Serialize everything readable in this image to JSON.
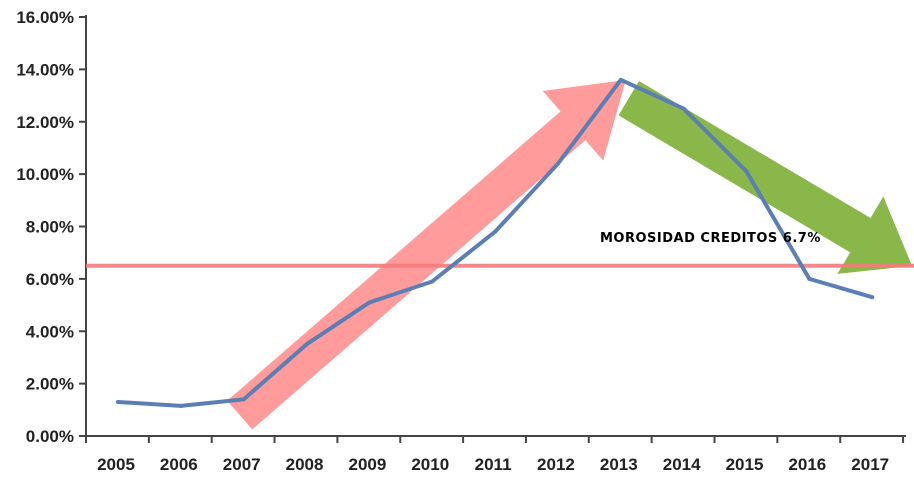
{
  "chart_data": {
    "type": "line",
    "title": "",
    "xlabel": "",
    "ylabel": "",
    "ylim": [
      0,
      16
    ],
    "y_ticks": [
      "0.00%",
      "2.00%",
      "4.00%",
      "6.00%",
      "8.00%",
      "10.00%",
      "12.00%",
      "14.00%",
      "16.00%"
    ],
    "categories": [
      "2005",
      "2006",
      "2007",
      "2008",
      "2009",
      "2010",
      "2011",
      "2012",
      "2013",
      "2014",
      "2015",
      "2016",
      "2017"
    ],
    "series": [
      {
        "values": [
          1.3,
          1.15,
          1.4,
          3.5,
          5.1,
          5.9,
          7.8,
          10.4,
          13.6,
          12.5,
          10.1,
          6.0,
          5.3
        ]
      }
    ],
    "reference_line": {
      "value": 6.5
    },
    "annotation": {
      "text": "MOROSIDAD CREDITOS 6.7%"
    },
    "arrows": [
      {
        "direction": "up",
        "from_year": "2007",
        "to_year": "2013"
      },
      {
        "direction": "down",
        "from_year": "2013",
        "to_year": "2017"
      }
    ],
    "grid": false,
    "colors": {
      "line": "#5b7fb5",
      "reference_line": "#f47c7c",
      "arrow_up": "#ff8a8a",
      "arrow_down": "#7fb13a",
      "axis": "#444444"
    }
  }
}
